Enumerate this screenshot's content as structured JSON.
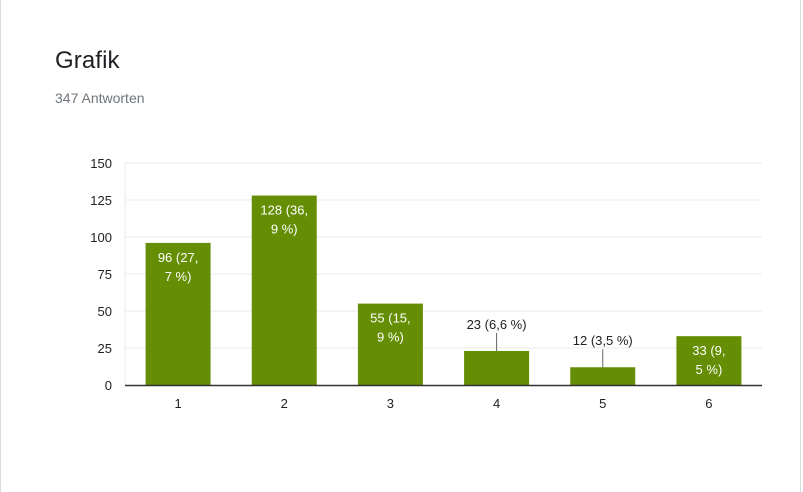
{
  "card": {
    "title": "Grafik",
    "subtitle": "347 Antworten"
  },
  "colors": {
    "bar": "#658e05",
    "grid": "#ebebeb",
    "axis": "#333333",
    "inside_label": "#ffffff",
    "outside_label": "#222222"
  },
  "chart_data": {
    "type": "bar",
    "title": "",
    "xlabel": "",
    "ylabel": "",
    "categories": [
      "1",
      "2",
      "3",
      "4",
      "5",
      "6"
    ],
    "values": [
      96,
      128,
      55,
      23,
      12,
      33
    ],
    "data_labels": [
      [
        "96 (27,",
        "7 %)"
      ],
      [
        "128 (36,",
        "9 %)"
      ],
      [
        "55 (15,",
        "9 %)"
      ],
      [
        "23 (6,6 %)"
      ],
      [
        "12 (3,5 %)"
      ],
      [
        "33 (9,",
        "5 %)"
      ]
    ],
    "label_inside": [
      true,
      true,
      true,
      false,
      false,
      true
    ],
    "ylim": [
      0,
      150
    ],
    "yticks": [
      0,
      25,
      50,
      75,
      100,
      125,
      150
    ],
    "grid": true,
    "legend": "none"
  }
}
